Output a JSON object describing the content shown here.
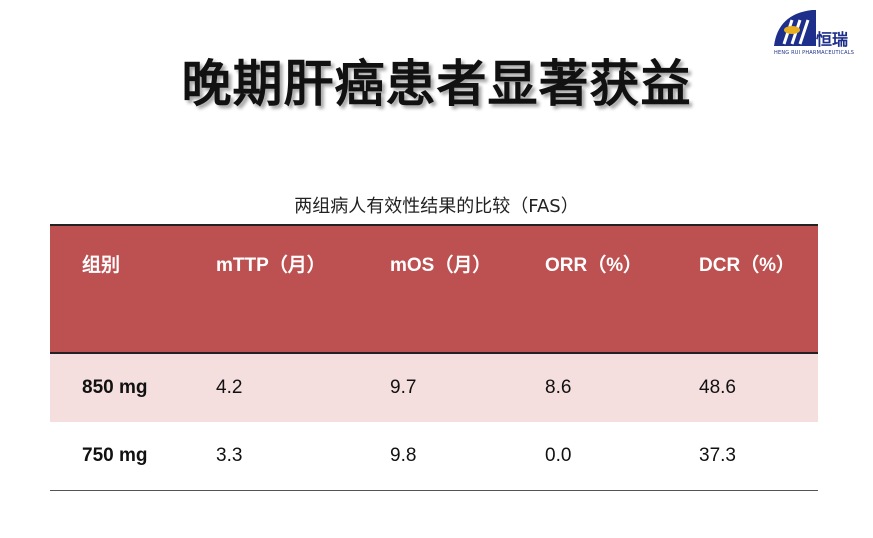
{
  "title": "晚期肝癌患者显著获益",
  "logo": {
    "cn": "恒瑞",
    "en": "HENG RUI PHARMACEUTICALS",
    "color": "#1d2f8a"
  },
  "caption": "两组病人有效性结果的比较（FAS）",
  "table": {
    "headers": [
      "组别",
      "mTTP（月）",
      "mOS（月）",
      "ORR（%）",
      "DCR（%）"
    ],
    "rows": [
      [
        "850 mg",
        "4.2",
        "9.7",
        "8.6",
        "48.6"
      ],
      [
        "750 mg",
        "3.3",
        "9.8",
        "0.0",
        "37.3"
      ]
    ],
    "header_color": "#bd5050",
    "stripe_color": "#f4dede"
  }
}
